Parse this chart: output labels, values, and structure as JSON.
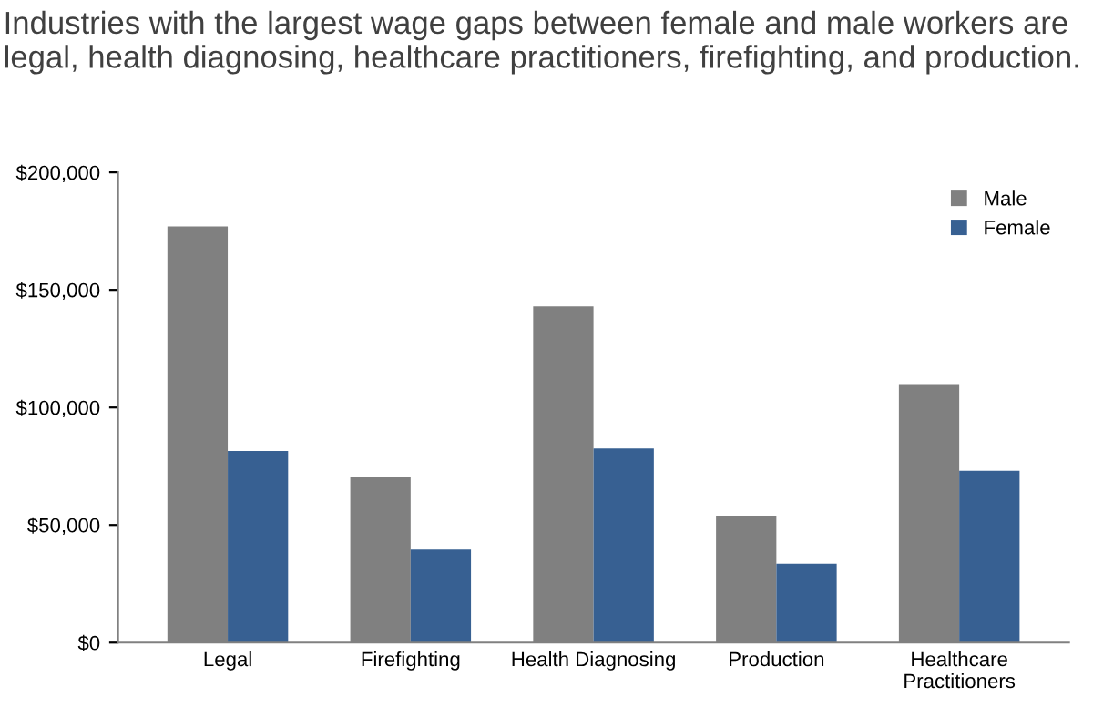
{
  "chart_data": {
    "type": "bar",
    "title": "Industries with the largest wage gaps between female and male workers are legal, health diagnosing, healthcare practitioners, firefighting, and production.",
    "categories": [
      "Legal",
      "Firefighting",
      "Health Diagnosing",
      "Production",
      "Healthcare\nPractitioners"
    ],
    "series": [
      {
        "name": "Male",
        "color": "#808080",
        "values": [
          177000,
          70500,
          143000,
          54000,
          110000
        ]
      },
      {
        "name": "Female",
        "color": "#376092",
        "values": [
          81500,
          39500,
          82500,
          33500,
          73000
        ]
      }
    ],
    "ylim": [
      0,
      200000
    ],
    "yticks": [
      {
        "value": 0,
        "label": "$0"
      },
      {
        "value": 50000,
        "label": "$50,000"
      },
      {
        "value": 100000,
        "label": "$100,000"
      },
      {
        "value": 150000,
        "label": "$150,000"
      },
      {
        "value": 200000,
        "label": "$200,000"
      }
    ],
    "grid": false,
    "legend": "top right"
  }
}
